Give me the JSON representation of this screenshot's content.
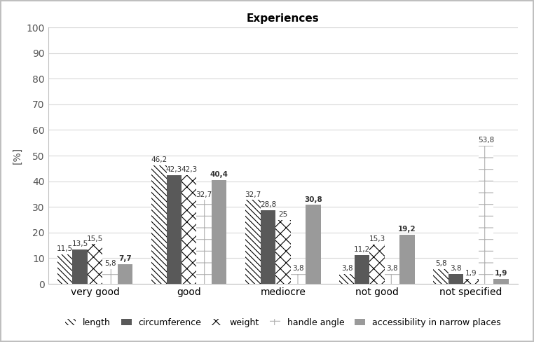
{
  "chart_data": {
    "type": "bar",
    "title": "Experiences",
    "y_label": "[%]",
    "categories": [
      "very good",
      "good",
      "mediocre",
      "not good",
      "not specified"
    ],
    "series": [
      {
        "name": "length",
        "color": "#000000",
        "values": [
          11.5,
          46.2,
          32.7,
          3.8,
          5.8
        ],
        "value_labels": [
          "11,5",
          "46,2",
          "32,7",
          "3,8",
          "5,8"
        ]
      },
      {
        "name": "circumference",
        "color": "#595959",
        "values": [
          13.5,
          42.3,
          28.8,
          11.2,
          3.8
        ],
        "value_labels": [
          "13,5",
          "42,3",
          "28,8",
          "11,2",
          "3,8"
        ]
      },
      {
        "name": "weight",
        "color": "#000000",
        "values": [
          15.5,
          42.3,
          25,
          15.3,
          1.9
        ],
        "value_labels": [
          "15,5",
          "42,3",
          "25",
          "15,3",
          "1,9"
        ]
      },
      {
        "name": "handle angle",
        "color": "#b0b0b0",
        "values": [
          5.8,
          32.7,
          3.8,
          3.8,
          53.8
        ],
        "value_labels": [
          "5,8",
          "32,7",
          "3,8",
          "3,8",
          "53,8"
        ]
      },
      {
        "name": "accessibility in narrow places",
        "color": "#9a9a9a",
        "values": [
          7.7,
          40.4,
          30.8,
          19.2,
          1.9
        ],
        "value_labels": [
          "7,7",
          "40,4",
          "30,8",
          "19,2",
          "1,9"
        ]
      }
    ],
    "ylim": [
      0,
      100
    ],
    "yticks": [
      0,
      10,
      20,
      30,
      40,
      50,
      60,
      70,
      80,
      90,
      100
    ],
    "grid": true,
    "legend": "lower center",
    "data_labels": true
  }
}
